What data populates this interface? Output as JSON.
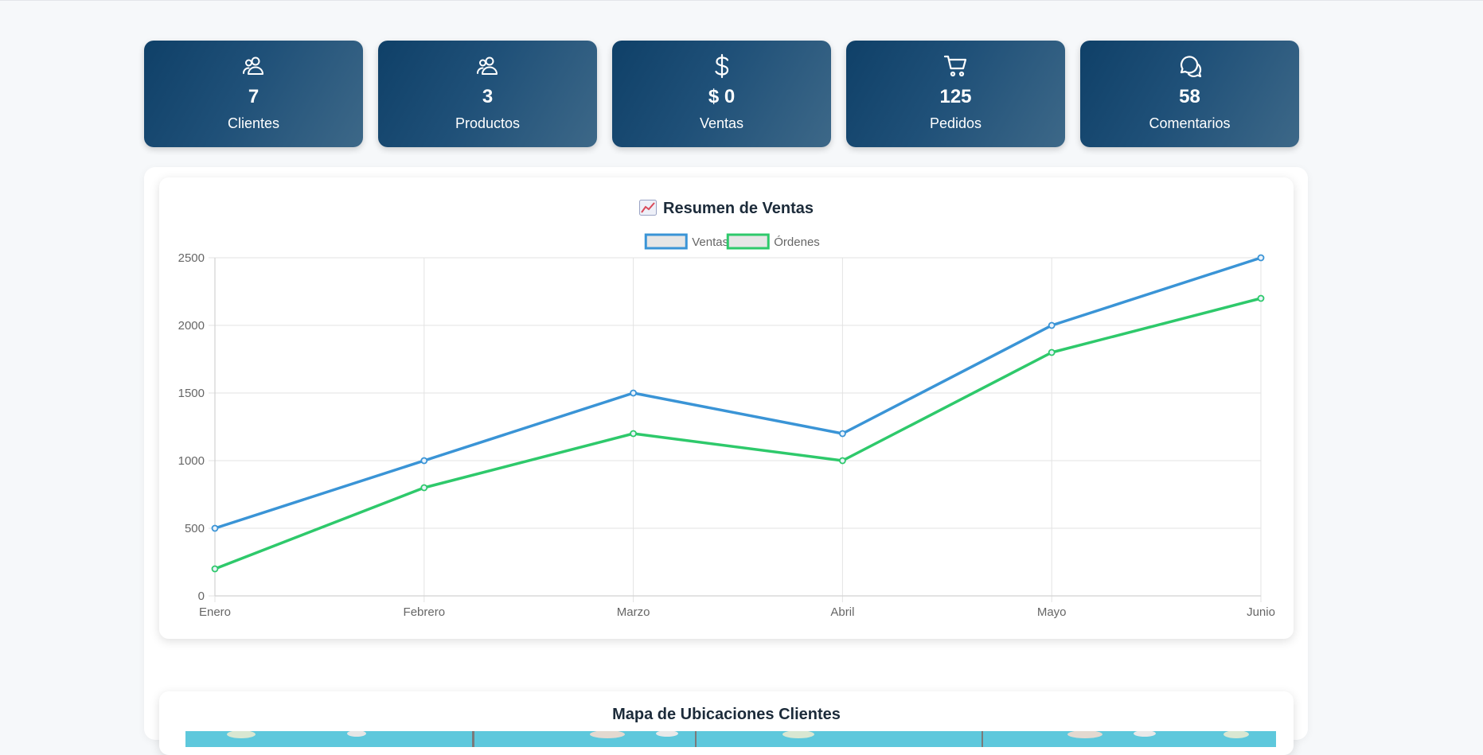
{
  "cards": [
    {
      "icon": "users-icon",
      "value": "7",
      "label": "Clientes"
    },
    {
      "icon": "users-icon",
      "value": "3",
      "label": "Productos"
    },
    {
      "icon": "dollar-icon",
      "value": "$ 0",
      "label": "Ventas"
    },
    {
      "icon": "cart-icon",
      "value": "125",
      "label": "Pedidos"
    },
    {
      "icon": "chat-icon",
      "value": "58",
      "label": "Comentarios"
    }
  ],
  "chart": {
    "title": "Resumen de Ventas",
    "title_icon": "chart-increasing-icon"
  },
  "map": {
    "title": "Mapa de Ubicaciones Clientes"
  },
  "colors": {
    "card_dark": "#0f4068",
    "ventas": "#3a94d6",
    "ordenes": "#2ec96b",
    "text": "#1c2b3a"
  },
  "chart_data": {
    "type": "line",
    "categories": [
      "Enero",
      "Febrero",
      "Marzo",
      "Abril",
      "Mayo",
      "Junio"
    ],
    "series": [
      {
        "name": "Ventas",
        "values": [
          500,
          1000,
          1500,
          1200,
          2000,
          2500
        ],
        "color": "#3a94d6"
      },
      {
        "name": "Órdenes",
        "values": [
          200,
          800,
          1200,
          1000,
          1800,
          2200
        ],
        "color": "#2ec96b"
      }
    ],
    "yticks": [
      0,
      500,
      1000,
      1500,
      2000,
      2500
    ],
    "ylim": [
      0,
      2500
    ],
    "grid": true,
    "legend": "top-center"
  }
}
